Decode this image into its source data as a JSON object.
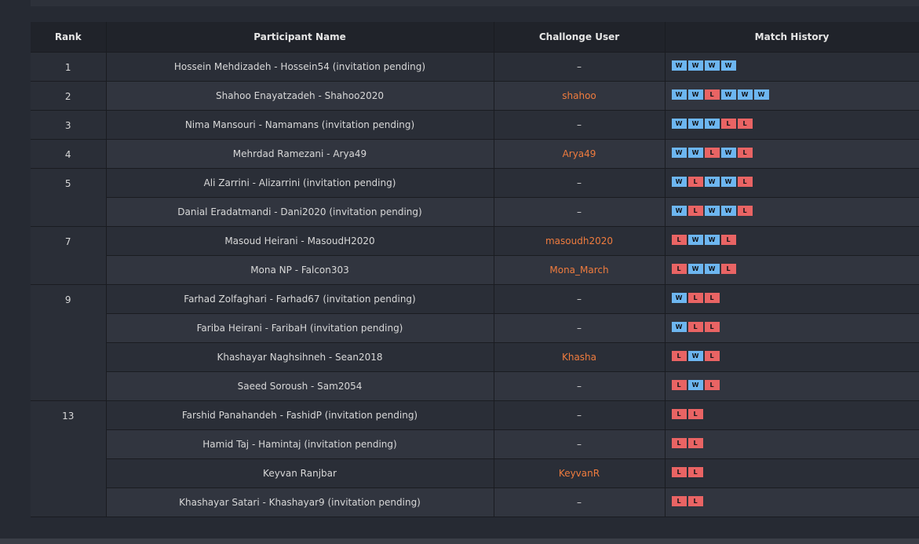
{
  "table": {
    "headers": {
      "rank": "Rank",
      "name": "Participant Name",
      "user": "Challonge User",
      "history": "Match History"
    },
    "rows": [
      {
        "rank": "1",
        "name": "Hossein Mehdizadeh - Hossein54 (invitation pending)",
        "user": "–",
        "history": [
          "W",
          "W",
          "W",
          "W"
        ]
      },
      {
        "rank": "2",
        "name": "Shahoo Enayatzadeh - Shahoo2020",
        "user": "shahoo",
        "history": [
          "W",
          "W",
          "L",
          "W",
          "W",
          "W"
        ]
      },
      {
        "rank": "3",
        "name": "Nima Mansouri - Namamans (invitation pending)",
        "user": "–",
        "history": [
          "W",
          "W",
          "W",
          "L",
          "L"
        ]
      },
      {
        "rank": "4",
        "name": "Mehrdad Ramezani - Arya49",
        "user": "Arya49",
        "history": [
          "W",
          "W",
          "L",
          "W",
          "L"
        ]
      },
      {
        "rank": "5",
        "name": "Ali Zarrini - Alizarrini (invitation pending)",
        "user": "–",
        "history": [
          "W",
          "L",
          "W",
          "W",
          "L"
        ]
      },
      {
        "rank": "",
        "name": "Danial Eradatmandi - Dani2020 (invitation pending)",
        "user": "–",
        "history": [
          "W",
          "L",
          "W",
          "W",
          "L"
        ]
      },
      {
        "rank": "7",
        "name": "Masoud Heirani - MasoudH2020",
        "user": "masoudh2020",
        "history": [
          "L",
          "W",
          "W",
          "L"
        ]
      },
      {
        "rank": "",
        "name": "Mona NP - Falcon303",
        "user": "Mona_March",
        "history": [
          "L",
          "W",
          "W",
          "L"
        ]
      },
      {
        "rank": "9",
        "name": "Farhad Zolfaghari - Farhad67 (invitation pending)",
        "user": "–",
        "history": [
          "W",
          "L",
          "L"
        ]
      },
      {
        "rank": "",
        "name": "Fariba Heirani - FaribaH (invitation pending)",
        "user": "–",
        "history": [
          "W",
          "L",
          "L"
        ]
      },
      {
        "rank": "",
        "name": "Khashayar Naghsihneh - Sean2018",
        "user": "Khasha",
        "history": [
          "L",
          "W",
          "L"
        ]
      },
      {
        "rank": "",
        "name": "Saeed Soroush - Sam2054",
        "user": "–",
        "history": [
          "L",
          "W",
          "L"
        ]
      },
      {
        "rank": "13",
        "name": "Farshid Panahandeh - FashidP (invitation pending)",
        "user": "–",
        "history": [
          "L",
          "L"
        ]
      },
      {
        "rank": "",
        "name": "Hamid Taj - Hamintaj (invitation pending)",
        "user": "–",
        "history": [
          "L",
          "L"
        ]
      },
      {
        "rank": "",
        "name": "Keyvan Ranjbar",
        "user": "KeyvanR",
        "history": [
          "L",
          "L"
        ]
      },
      {
        "rank": "",
        "name": "Khashayar Satari - Khashayar9 (invitation pending)",
        "user": "–",
        "history": [
          "L",
          "L"
        ]
      }
    ]
  },
  "colors": {
    "win": "#6db6f0",
    "loss": "#e96464",
    "user_link": "#f07c3e"
  }
}
